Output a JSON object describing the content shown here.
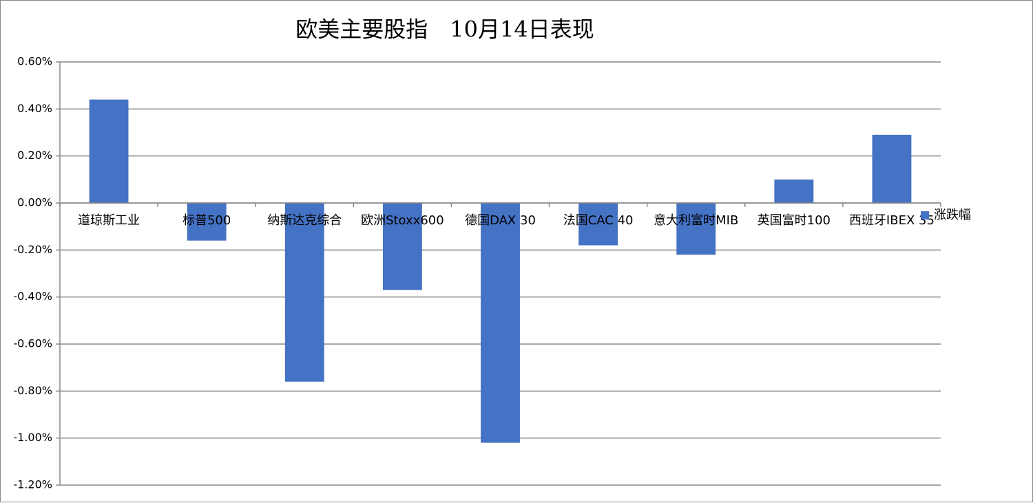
{
  "chart_data": {
    "type": "bar",
    "title": "欧美主要股指　10月14日表现",
    "categories": [
      "道琼斯工业",
      "标普500",
      "纳斯达克综合",
      "欧洲Stoxx600",
      "德国DAX 30",
      "法国CAC 40",
      "意大利富时MIB",
      "英国富时100",
      "西班牙IBEX 35"
    ],
    "series": [
      {
        "name": "涨跌幅",
        "color": "#4472c4",
        "values": [
          0.44,
          -0.16,
          -0.76,
          -0.37,
          -1.02,
          -0.18,
          -0.22,
          0.1,
          0.29
        ]
      }
    ],
    "ylim": [
      -1.2,
      0.6
    ],
    "yticks": [
      {
        "value": -1.2,
        "label": "-1.20%"
      },
      {
        "value": -1.0,
        "label": "-1.00%"
      },
      {
        "value": -0.8,
        "label": "-0.80%"
      },
      {
        "value": -0.6,
        "label": "-0.60%"
      },
      {
        "value": -0.4,
        "label": "-0.40%"
      },
      {
        "value": -0.2,
        "label": "-0.20%"
      },
      {
        "value": 0,
        "label": "0.00%"
      },
      {
        "value": 0.2,
        "label": "0.20%"
      },
      {
        "value": 0.4,
        "label": "0.40%"
      },
      {
        "value": 0.6,
        "label": "0.60%"
      }
    ],
    "grid": true,
    "legend": "right"
  }
}
